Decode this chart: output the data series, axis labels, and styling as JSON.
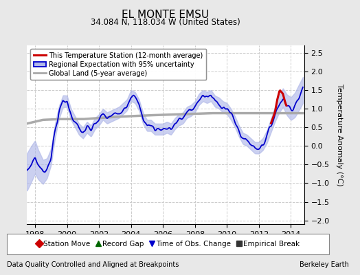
{
  "title": "EL MONTE EMSU",
  "subtitle": "34.084 N, 118.034 W (United States)",
  "ylabel": "Temperature Anomaly (°C)",
  "xlabel_bottom_left": "Data Quality Controlled and Aligned at Breakpoints",
  "xlabel_bottom_right": "Berkeley Earth",
  "xlim": [
    1997.5,
    2014.83
  ],
  "ylim": [
    -2.1,
    2.7
  ],
  "yticks": [
    -2,
    -1.5,
    -1,
    -0.5,
    0,
    0.5,
    1,
    1.5,
    2,
    2.5
  ],
  "xticks": [
    1998,
    2000,
    2002,
    2004,
    2006,
    2008,
    2010,
    2012,
    2014
  ],
  "bg_color": "#e8e8e8",
  "plot_bg_color": "#ffffff",
  "grid_color": "#cccccc",
  "regional_line_color": "#0000cc",
  "regional_fill_color": "#b0b8e8",
  "station_line_color": "#cc0000",
  "global_line_color": "#aaaaaa",
  "legend1_items": [
    {
      "label": "This Temperature Station (12-month average)",
      "color": "#cc0000",
      "lw": 2.2
    },
    {
      "label": "Regional Expectation with 95% uncertainty",
      "color": "#0000cc",
      "lw": 1.5
    },
    {
      "label": "Global Land (5-year average)",
      "color": "#aaaaaa",
      "lw": 2.0
    }
  ],
  "legend2_items": [
    {
      "label": "Station Move",
      "marker": "D",
      "color": "#cc0000"
    },
    {
      "label": "Record Gap",
      "marker": "^",
      "color": "#006600"
    },
    {
      "label": "Time of Obs. Change",
      "marker": "v",
      "color": "#0000cc"
    },
    {
      "label": "Empirical Break",
      "marker": "s",
      "color": "#333333"
    }
  ],
  "key_t": [
    1997.5,
    1997.75,
    1998.0,
    1998.2,
    1998.5,
    1998.75,
    1999.0,
    1999.25,
    1999.5,
    1999.75,
    2000.0,
    2000.25,
    2000.5,
    2000.75,
    2001.0,
    2001.25,
    2001.5,
    2001.75,
    2002.0,
    2002.25,
    2002.5,
    2002.75,
    2003.0,
    2003.25,
    2003.5,
    2003.75,
    2004.0,
    2004.25,
    2004.5,
    2004.75,
    2005.0,
    2005.25,
    2005.5,
    2005.75,
    2006.0,
    2006.25,
    2006.5,
    2006.75,
    2007.0,
    2007.25,
    2007.5,
    2007.75,
    2008.0,
    2008.25,
    2008.5,
    2008.75,
    2009.0,
    2009.25,
    2009.5,
    2009.75,
    2010.0,
    2010.25,
    2010.5,
    2010.75,
    2011.0,
    2011.25,
    2011.5,
    2011.75,
    2012.0,
    2012.25,
    2012.5,
    2012.75,
    2013.0,
    2013.25,
    2013.5,
    2013.75,
    2014.0,
    2014.25,
    2014.5,
    2014.75
  ],
  "key_v": [
    -0.7,
    -0.5,
    -0.3,
    -0.5,
    -0.7,
    -0.6,
    -0.3,
    0.4,
    0.9,
    1.2,
    1.2,
    0.85,
    0.65,
    0.45,
    0.35,
    0.5,
    0.4,
    0.6,
    0.7,
    0.85,
    0.75,
    0.8,
    0.85,
    0.9,
    1.0,
    1.1,
    1.35,
    1.3,
    1.1,
    0.75,
    0.55,
    0.55,
    0.45,
    0.45,
    0.45,
    0.5,
    0.45,
    0.6,
    0.7,
    0.75,
    0.9,
    0.95,
    1.05,
    1.25,
    1.35,
    1.3,
    1.35,
    1.2,
    1.15,
    1.05,
    1.0,
    0.85,
    0.65,
    0.4,
    0.2,
    0.15,
    0.05,
    -0.05,
    -0.05,
    0.05,
    0.25,
    0.55,
    0.85,
    1.1,
    1.3,
    1.1,
    1.0,
    1.1,
    1.3,
    1.5
  ],
  "station_key_t": [
    2012.75,
    2013.0,
    2013.15,
    2013.3,
    2013.5,
    2013.65,
    2013.75
  ],
  "station_key_v": [
    0.6,
    0.9,
    1.25,
    1.5,
    1.4,
    1.15,
    1.05
  ],
  "global_key_t": [
    1997.5,
    1998.5,
    1999.5,
    2001.0,
    2003.0,
    2005.0,
    2007.0,
    2009.0,
    2011.0,
    2013.0,
    2014.75
  ],
  "global_key_v": [
    0.6,
    0.7,
    0.72,
    0.72,
    0.78,
    0.82,
    0.85,
    0.88,
    0.88,
    0.88,
    0.88
  ]
}
